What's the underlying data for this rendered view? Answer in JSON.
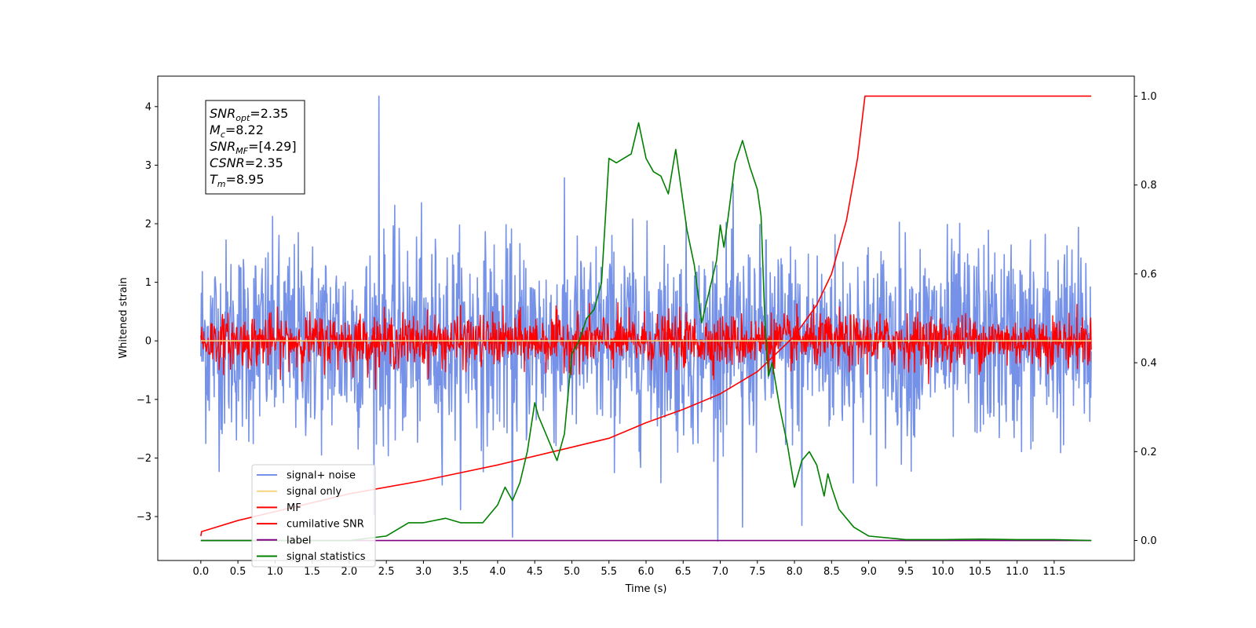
{
  "chart_data": {
    "type": "line",
    "title": "",
    "xlabel": "Time (s)",
    "ylabel": "Whitened strain",
    "xlim": [
      -0.58,
      12.58
    ],
    "ylim": [
      -3.75,
      4.52
    ],
    "y2lim": [
      -0.045,
      1.045
    ],
    "xticks": [
      0.0,
      0.5,
      1.0,
      1.5,
      2.0,
      2.5,
      3.0,
      3.5,
      4.0,
      4.5,
      5.0,
      5.5,
      6.0,
      6.5,
      7.0,
      7.5,
      8.0,
      8.5,
      9.0,
      9.5,
      10.0,
      10.5,
      11.0,
      11.5
    ],
    "xtick_labels": [
      "0.0",
      "0.5",
      "1.0",
      "1.5",
      "2.0",
      "2.5",
      "3.0",
      "3.5",
      "4.0",
      "4.5",
      "5.0",
      "5.5",
      "6.0",
      "6.5",
      "7.0",
      "7.5",
      "8.0",
      "8.5",
      "9.0",
      "9.5",
      "10.0",
      "10.5",
      "11.0",
      "11.5"
    ],
    "yticks": [
      -3,
      -2,
      -1,
      0,
      1,
      2,
      3,
      4
    ],
    "ytick_labels": [
      "−3",
      "−2",
      "−1",
      "0",
      "1",
      "2",
      "3",
      "4"
    ],
    "y2ticks": [
      0.0,
      0.2,
      0.4,
      0.6,
      0.8,
      1.0
    ],
    "y2tick_labels": [
      "0.0",
      "0.2",
      "0.4",
      "0.6",
      "0.8",
      "1.0"
    ],
    "grid": false,
    "legend_position": "lower-left",
    "annotation": [
      {
        "base": "SNR",
        "sub": "opt",
        "value": "=2.35"
      },
      {
        "base": "M",
        "sub": "c",
        "value": "=8.22"
      },
      {
        "base": "SNR",
        "sub": "MF",
        "value": "=[4.29]"
      },
      {
        "base": "CSNR",
        "sub": "",
        "value": "=2.35"
      },
      {
        "base": "T",
        "sub": "m",
        "value": "=8.95"
      }
    ],
    "series": [
      {
        "name": "signal+ noise",
        "color": "#7591e8",
        "axis": "left",
        "kind": "noise",
        "x_range": [
          0,
          12.0
        ],
        "std": 0.85,
        "spikes": [
          [
            2.4,
            4.18
          ],
          [
            4.2,
            -3.35
          ],
          [
            7.3,
            -3.18
          ],
          [
            8.1,
            -3.15
          ]
        ]
      },
      {
        "name": "signal only",
        "color": "#f6d57e",
        "axis": "left",
        "kind": "flat",
        "x": [
          0,
          12.0
        ],
        "y": [
          0,
          0
        ]
      },
      {
        "name": "MF",
        "color": "#ff0000",
        "axis": "left",
        "kind": "noise",
        "x_range": [
          0,
          12.0
        ],
        "std": 0.22
      },
      {
        "name": "cumilative SNR",
        "color": "#ff0000",
        "axis": "right",
        "x": [
          0.0,
          0.01,
          0.5,
          1.0,
          2.0,
          3.0,
          4.0,
          5.0,
          5.5,
          6.0,
          6.5,
          7.0,
          7.5,
          8.0,
          8.3,
          8.5,
          8.7,
          8.85,
          8.95,
          9.5,
          12.0
        ],
        "y": [
          0.01,
          0.02,
          0.045,
          0.065,
          0.105,
          0.135,
          0.17,
          0.21,
          0.23,
          0.265,
          0.295,
          0.33,
          0.38,
          0.46,
          0.53,
          0.6,
          0.72,
          0.86,
          1.0,
          1.0,
          1.0
        ]
      },
      {
        "name": "label",
        "color": "#800080",
        "axis": "right",
        "x": [
          0,
          12.0
        ],
        "y": [
          0.0,
          0.0
        ]
      },
      {
        "name": "signal statistics",
        "color": "#008000",
        "axis": "right",
        "x": [
          0.0,
          0.5,
          1.0,
          1.5,
          2.0,
          2.5,
          2.8,
          3.0,
          3.3,
          3.5,
          3.8,
          4.0,
          4.1,
          4.2,
          4.3,
          4.4,
          4.5,
          4.55,
          4.7,
          4.8,
          4.9,
          5.0,
          5.1,
          5.2,
          5.3,
          5.4,
          5.5,
          5.6,
          5.7,
          5.8,
          5.9,
          6.0,
          6.1,
          6.2,
          6.3,
          6.4,
          6.45,
          6.55,
          6.65,
          6.75,
          6.85,
          6.95,
          7.0,
          7.05,
          7.1,
          7.2,
          7.3,
          7.4,
          7.5,
          7.55,
          7.6,
          7.65,
          7.7,
          7.8,
          7.9,
          8.0,
          8.05,
          8.1,
          8.2,
          8.3,
          8.4,
          8.45,
          8.5,
          8.6,
          8.8,
          9.0,
          9.5,
          10.0,
          10.5,
          11.0,
          11.5,
          12.0
        ],
        "y": [
          0.0,
          0.0,
          0.0,
          0.0,
          0.0,
          0.01,
          0.04,
          0.04,
          0.05,
          0.04,
          0.04,
          0.08,
          0.12,
          0.09,
          0.13,
          0.2,
          0.31,
          0.28,
          0.22,
          0.18,
          0.24,
          0.42,
          0.45,
          0.5,
          0.52,
          0.58,
          0.86,
          0.85,
          0.86,
          0.87,
          0.94,
          0.86,
          0.83,
          0.82,
          0.78,
          0.88,
          0.82,
          0.7,
          0.62,
          0.49,
          0.56,
          0.63,
          0.71,
          0.66,
          0.72,
          0.85,
          0.9,
          0.84,
          0.79,
          0.73,
          0.5,
          0.37,
          0.4,
          0.3,
          0.22,
          0.12,
          0.15,
          0.18,
          0.2,
          0.17,
          0.1,
          0.15,
          0.12,
          0.07,
          0.03,
          0.01,
          0.002,
          0.002,
          0.003,
          0.002,
          0.002,
          0.0
        ]
      }
    ]
  }
}
